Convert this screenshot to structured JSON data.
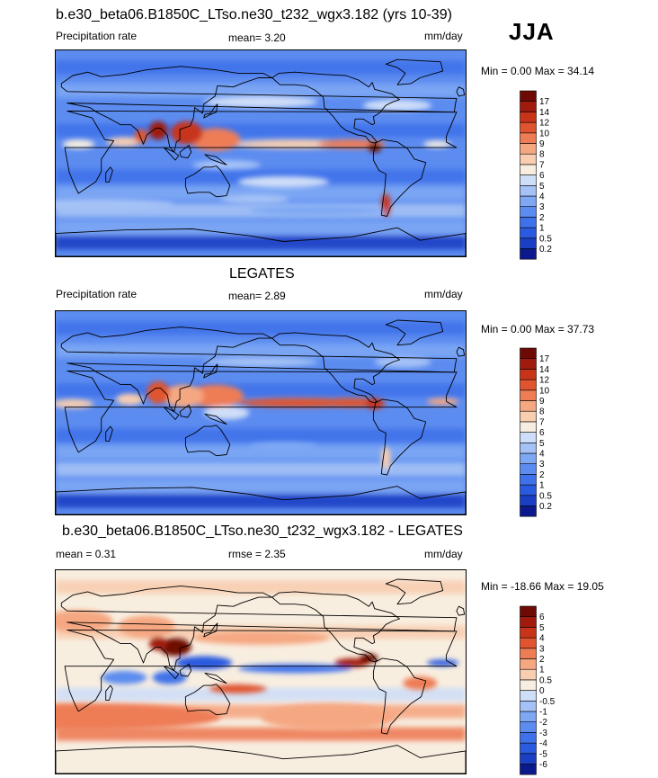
{
  "season": "JJA",
  "panels": [
    {
      "id": "model",
      "title": "b.e30_beta06.B1850C_LTso.ne30_t232_wgx3.182 (yrs 10-39)",
      "left_label": "Precipitation rate",
      "center_label": "mean=   3.20",
      "right_label": "mm/day",
      "range_label": "Min =   0.00 Max =  34.14"
    },
    {
      "id": "obs",
      "title": "LEGATES",
      "left_label": "Precipitation rate",
      "center_label": "mean=   2.89",
      "right_label": "mm/day",
      "range_label": "Min =   0.00 Max =  37.73"
    },
    {
      "id": "diff",
      "title": "b.e30_beta06.B1850C_LTso.ne30_t232_wgx3.182 - LEGATES",
      "left_label": "mean =   0.31",
      "center_label": "rmse =   2.35",
      "right_label": "mm/day",
      "range_label": "Min = -18.66 Max =  19.05"
    }
  ],
  "chart_data": [
    {
      "type": "heatmap",
      "title": "b.e30_beta06.B1850C_LTso.ne30_t232_wgx3.182 (yrs 10-39)",
      "variable": "Precipitation rate",
      "units": "mm/day",
      "season": "JJA",
      "mean": 3.2,
      "min": 0.0,
      "max": 34.14,
      "colorbar_levels": [
        "0.2",
        "0.5",
        "1",
        "2",
        "3",
        "4",
        "5",
        "6",
        "7",
        "8",
        "9",
        "10",
        "12",
        "14",
        "17"
      ],
      "colorbar_colors": [
        "#0a1a8c",
        "#1a3fc4",
        "#2a5ae0",
        "#3f72ea",
        "#5c8cf0",
        "#7ea8f4",
        "#a5c2f6",
        "#cfdef8",
        "#f8eee0",
        "#f8cdb0",
        "#f5a782",
        "#ee7d56",
        "#e0552f",
        "#c8341a",
        "#a01a0d",
        "#6e0a05"
      ]
    },
    {
      "type": "heatmap",
      "title": "LEGATES",
      "variable": "Precipitation rate",
      "units": "mm/day",
      "season": "JJA",
      "mean": 2.89,
      "min": 0.0,
      "max": 37.73,
      "colorbar_levels": [
        "0.2",
        "0.5",
        "1",
        "2",
        "3",
        "4",
        "5",
        "6",
        "7",
        "8",
        "9",
        "10",
        "12",
        "14",
        "17"
      ],
      "colorbar_colors": [
        "#0a1a8c",
        "#1a3fc4",
        "#2a5ae0",
        "#3f72ea",
        "#5c8cf0",
        "#7ea8f4",
        "#a5c2f6",
        "#cfdef8",
        "#f8eee0",
        "#f8cdb0",
        "#f5a782",
        "#ee7d56",
        "#e0552f",
        "#c8341a",
        "#a01a0d",
        "#6e0a05"
      ]
    },
    {
      "type": "heatmap",
      "title": "b.e30_beta06.B1850C_LTso.ne30_t232_wgx3.182 - LEGATES",
      "units": "mm/day",
      "season": "JJA",
      "mean": 0.31,
      "rmse": 2.35,
      "min": -18.66,
      "max": 19.05,
      "colorbar_levels": [
        "-6",
        "-5",
        "-4",
        "-3",
        "-2",
        "-1",
        "-0.5",
        "0",
        "0.5",
        "1",
        "2",
        "3",
        "4",
        "5",
        "6"
      ],
      "colorbar_colors": [
        "#0a1a8c",
        "#1a3fc4",
        "#2a5ae0",
        "#3f72ea",
        "#5c8cf0",
        "#7ea8f4",
        "#a5c2f6",
        "#cfdef8",
        "#f8eee0",
        "#f8cdb0",
        "#f5a782",
        "#ee7d56",
        "#e0552f",
        "#c8341a",
        "#a01a0d",
        "#6e0a05"
      ]
    }
  ]
}
